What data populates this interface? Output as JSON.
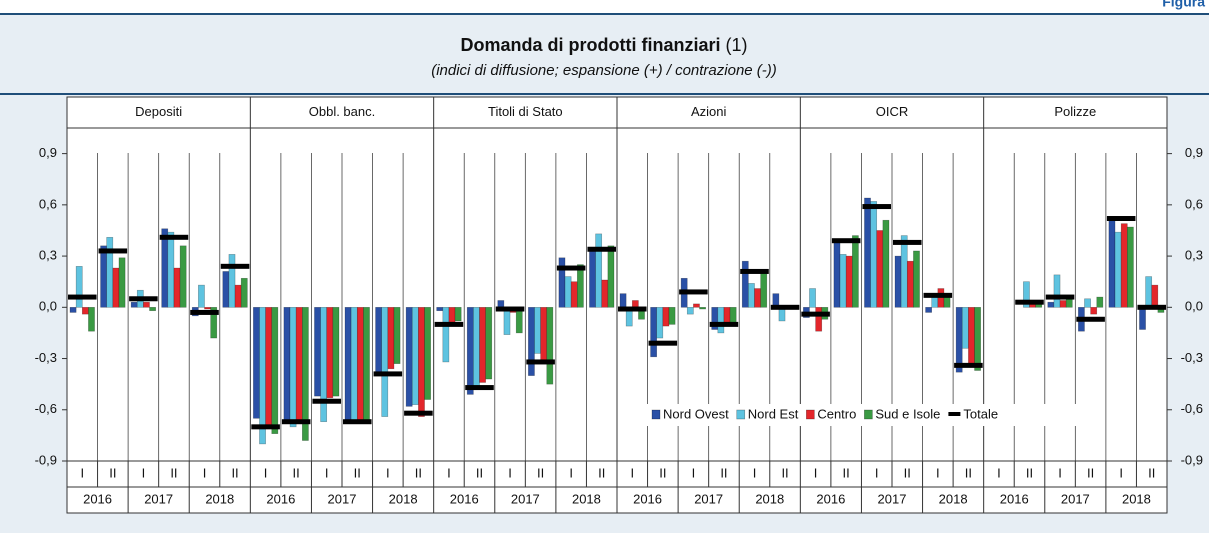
{
  "figure_label": "Figura",
  "chart_data": {
    "type": "bar",
    "title": "Domanda di prodotti finanziari",
    "title_note": "(1)",
    "subtitle": "(indici di diffusione; espansione (+) / contrazione (-))",
    "panels": [
      "Depositi",
      "Obbl. banc.",
      "Titoli di Stato",
      "Azioni",
      "OICR",
      "Polizze"
    ],
    "halves": [
      "I",
      "II"
    ],
    "years": [
      "2016",
      "2017",
      "2018"
    ],
    "ylim": [
      -0.9,
      1.05
    ],
    "yticks": [
      {
        "value": 0.9,
        "label": "0,9"
      },
      {
        "value": 0.6,
        "label": "0,6"
      },
      {
        "value": 0.3,
        "label": "0,3"
      },
      {
        "value": 0,
        "label": "0,0"
      },
      {
        "value": -0.3,
        "label": "-0,3"
      },
      {
        "value": -0.6,
        "label": "-0,6"
      },
      {
        "value": -0.9,
        "label": "-0,9"
      }
    ],
    "series": [
      {
        "name": "Nord Ovest",
        "color": "#2a50a6",
        "values": [
          [
            -0.03,
            0.36,
            0.03,
            0.46,
            -0.05,
            0.21
          ],
          [
            -0.65,
            -0.66,
            -0.52,
            -0.67,
            -0.39,
            -0.58
          ],
          [
            -0.02,
            -0.51,
            0.04,
            -0.4,
            0.29,
            0.35
          ],
          [
            0.08,
            -0.29,
            0.17,
            -0.13,
            0.27,
            0.08
          ],
          [
            -0.06,
            0.4,
            0.64,
            0.3,
            -0.03,
            -0.38
          ],
          [
            null,
            0.0,
            0.03,
            -0.14,
            0.53,
            -0.13
          ]
        ]
      },
      {
        "name": "Nord Est",
        "color": "#5ec3e0",
        "values": [
          [
            0.24,
            0.41,
            0.1,
            0.44,
            0.13,
            0.31
          ],
          [
            -0.8,
            -0.7,
            -0.67,
            -0.67,
            -0.64,
            -0.57
          ],
          [
            -0.32,
            -0.47,
            -0.16,
            -0.27,
            0.18,
            0.43
          ],
          [
            -0.11,
            -0.18,
            -0.04,
            -0.15,
            0.14,
            -0.08
          ],
          [
            0.11,
            0.31,
            0.62,
            0.42,
            0.08,
            -0.24
          ],
          [
            null,
            0.15,
            0.19,
            0.05,
            0.44,
            0.18
          ]
        ]
      },
      {
        "name": "Centro",
        "color": "#e3262b",
        "values": [
          [
            -0.04,
            0.23,
            0.03,
            0.23,
            -0.01,
            0.13
          ],
          [
            -0.7,
            -0.68,
            -0.53,
            -0.67,
            -0.36,
            -0.64
          ],
          [
            -0.1,
            -0.44,
            -0.03,
            -0.32,
            0.15,
            0.16
          ],
          [
            0.04,
            -0.11,
            0.02,
            -0.09,
            0.11,
            0.01
          ],
          [
            -0.14,
            0.3,
            0.45,
            0.27,
            0.11,
            -0.35
          ],
          [
            null,
            0.02,
            0.04,
            -0.04,
            0.49,
            0.13
          ]
        ]
      },
      {
        "name": "Sud e Isole",
        "color": "#3a9a43",
        "values": [
          [
            -0.14,
            0.29,
            -0.02,
            0.36,
            -0.18,
            0.17
          ],
          [
            -0.74,
            -0.78,
            -0.52,
            -0.67,
            -0.33,
            -0.54
          ],
          [
            -0.08,
            -0.42,
            -0.15,
            -0.45,
            0.25,
            0.36
          ],
          [
            -0.07,
            -0.1,
            -0.01,
            -0.11,
            0.21,
            0.0
          ],
          [
            -0.07,
            0.42,
            0.51,
            0.33,
            0.06,
            -0.37
          ],
          [
            null,
            0.02,
            0.07,
            0.06,
            0.47,
            -0.03
          ]
        ]
      },
      {
        "name": "Totale",
        "color": "#000000",
        "style": "marker",
        "values": [
          [
            0.06,
            0.33,
            0.05,
            0.41,
            -0.03,
            0.24
          ],
          [
            -0.7,
            -0.67,
            -0.55,
            -0.67,
            -0.39,
            -0.62
          ],
          [
            -0.1,
            -0.47,
            -0.01,
            -0.32,
            0.23,
            0.34
          ],
          [
            -0.01,
            -0.21,
            0.09,
            -0.1,
            0.21,
            0.0
          ],
          [
            -0.04,
            0.39,
            0.59,
            0.38,
            0.07,
            -0.34
          ],
          [
            null,
            0.03,
            0.06,
            -0.07,
            0.52,
            0.0
          ]
        ]
      }
    ]
  }
}
